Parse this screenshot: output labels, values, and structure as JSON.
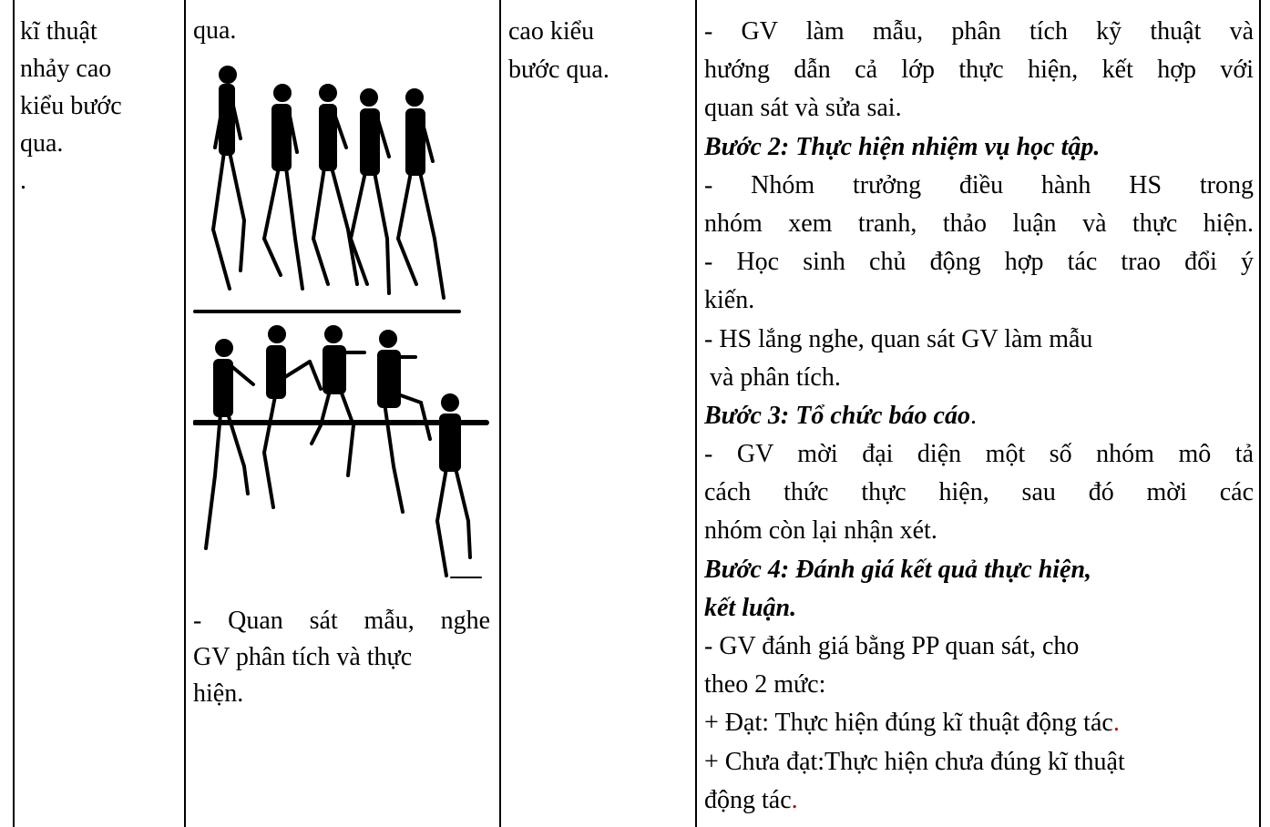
{
  "table": {
    "rows": [
      [
        {
          "lines": [
            "kĩ thuật",
            "nhảy cao",
            "kiểu bước",
            "qua.",
            "."
          ]
        },
        {
          "lines": [
            "qua.",
            "- Quan sát mẫu, nghe",
            "GV phân tích và thực",
            "hiện."
          ]
        },
        {
          "lines": [
            "cao kiểu",
            "bước qua."
          ]
        },
        {
          "lines": [
            "- GV làm mẫu, phân tích kỹ thuật và",
            "hướng dẫn cả lớp thực hiện, kết hợp với",
            "quan sát và sửa sai.",
            "Bước 2: Thực hiện nhiệm vụ học tập.",
            "- Nhóm trưởng điều hành HS trong",
            "nhóm xem tranh, thảo luận và thực hiện.",
            "- Học sinh chủ động hợp tác trao đổi ý",
            "kiến.",
            "- HS lắng nghe, quan sát GV làm mẫu",
            "và phân tích.",
            [
              "Bước 3: Tổ chức báo cáo",
              "."
            ],
            "- GV mời đại diện một số nhóm mô tả",
            "cách thức thực hiện, sau đó mời các",
            "nhóm còn lại nhận xét.",
            "Bước 4: Đánh giá kết quả thực hiện,",
            "kết luận.",
            "- GV đánh giá bằng PP quan sát, cho",
            "theo 2 mức:",
            [
              "+ Đạt: Thực hiện đúng kĩ thuật động tác",
              "."
            ],
            "+ Chưa đạt:Thực hiện chưa đúng kĩ thuật",
            [
              "động tác",
              "."
            ]
          ]
        }
      ]
    ]
  }
}
